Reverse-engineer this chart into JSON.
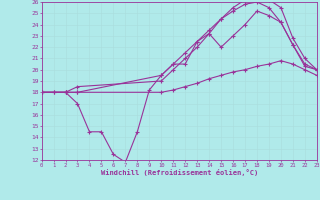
{
  "xlabel": "Windchill (Refroidissement éolien,°C)",
  "bg_color": "#b0eaea",
  "line_color": "#993399",
  "grid_color": "#cceeee",
  "xmin": 0,
  "xmax": 23,
  "ymin": 12,
  "ymax": 26,
  "lines": [
    {
      "x": [
        0,
        1,
        2,
        3,
        4,
        5,
        6,
        7,
        8,
        9,
        10,
        11,
        12,
        13,
        14,
        15,
        16,
        17,
        18,
        19,
        20,
        21,
        22,
        23
      ],
      "y": [
        18,
        18,
        18,
        17,
        14.5,
        14.5,
        12.5,
        11.8,
        14.5,
        18.2,
        19.5,
        20.5,
        20.5,
        22.5,
        23.2,
        22.0,
        23.0,
        24.0,
        25.2,
        24.8,
        24.2,
        22.2,
        20.3,
        20.0
      ]
    },
    {
      "x": [
        0,
        1,
        2,
        3,
        10,
        11,
        12,
        13,
        14,
        15,
        16,
        17,
        18,
        19,
        20,
        21,
        22,
        23
      ],
      "y": [
        18,
        18,
        18,
        18,
        18.0,
        18.2,
        18.5,
        18.8,
        19.2,
        19.5,
        19.8,
        20.0,
        20.3,
        20.5,
        20.8,
        20.5,
        20.0,
        19.5
      ]
    },
    {
      "x": [
        0,
        2,
        3,
        10,
        11,
        12,
        13,
        14,
        15,
        16,
        17,
        18,
        19,
        20,
        21,
        22,
        23
      ],
      "y": [
        18,
        18,
        18.0,
        19.5,
        20.5,
        21.5,
        22.5,
        23.5,
        24.5,
        25.2,
        25.8,
        26.0,
        25.5,
        24.2,
        22.2,
        20.5,
        20.0
      ]
    },
    {
      "x": [
        0,
        2,
        3,
        10,
        11,
        12,
        13,
        14,
        15,
        16,
        17,
        18,
        19,
        20,
        21,
        22,
        23
      ],
      "y": [
        18,
        18,
        18.5,
        19.0,
        20.0,
        21.0,
        22.0,
        23.2,
        24.5,
        25.5,
        26.2,
        26.5,
        26.2,
        25.5,
        22.8,
        21.0,
        20.0
      ]
    }
  ]
}
